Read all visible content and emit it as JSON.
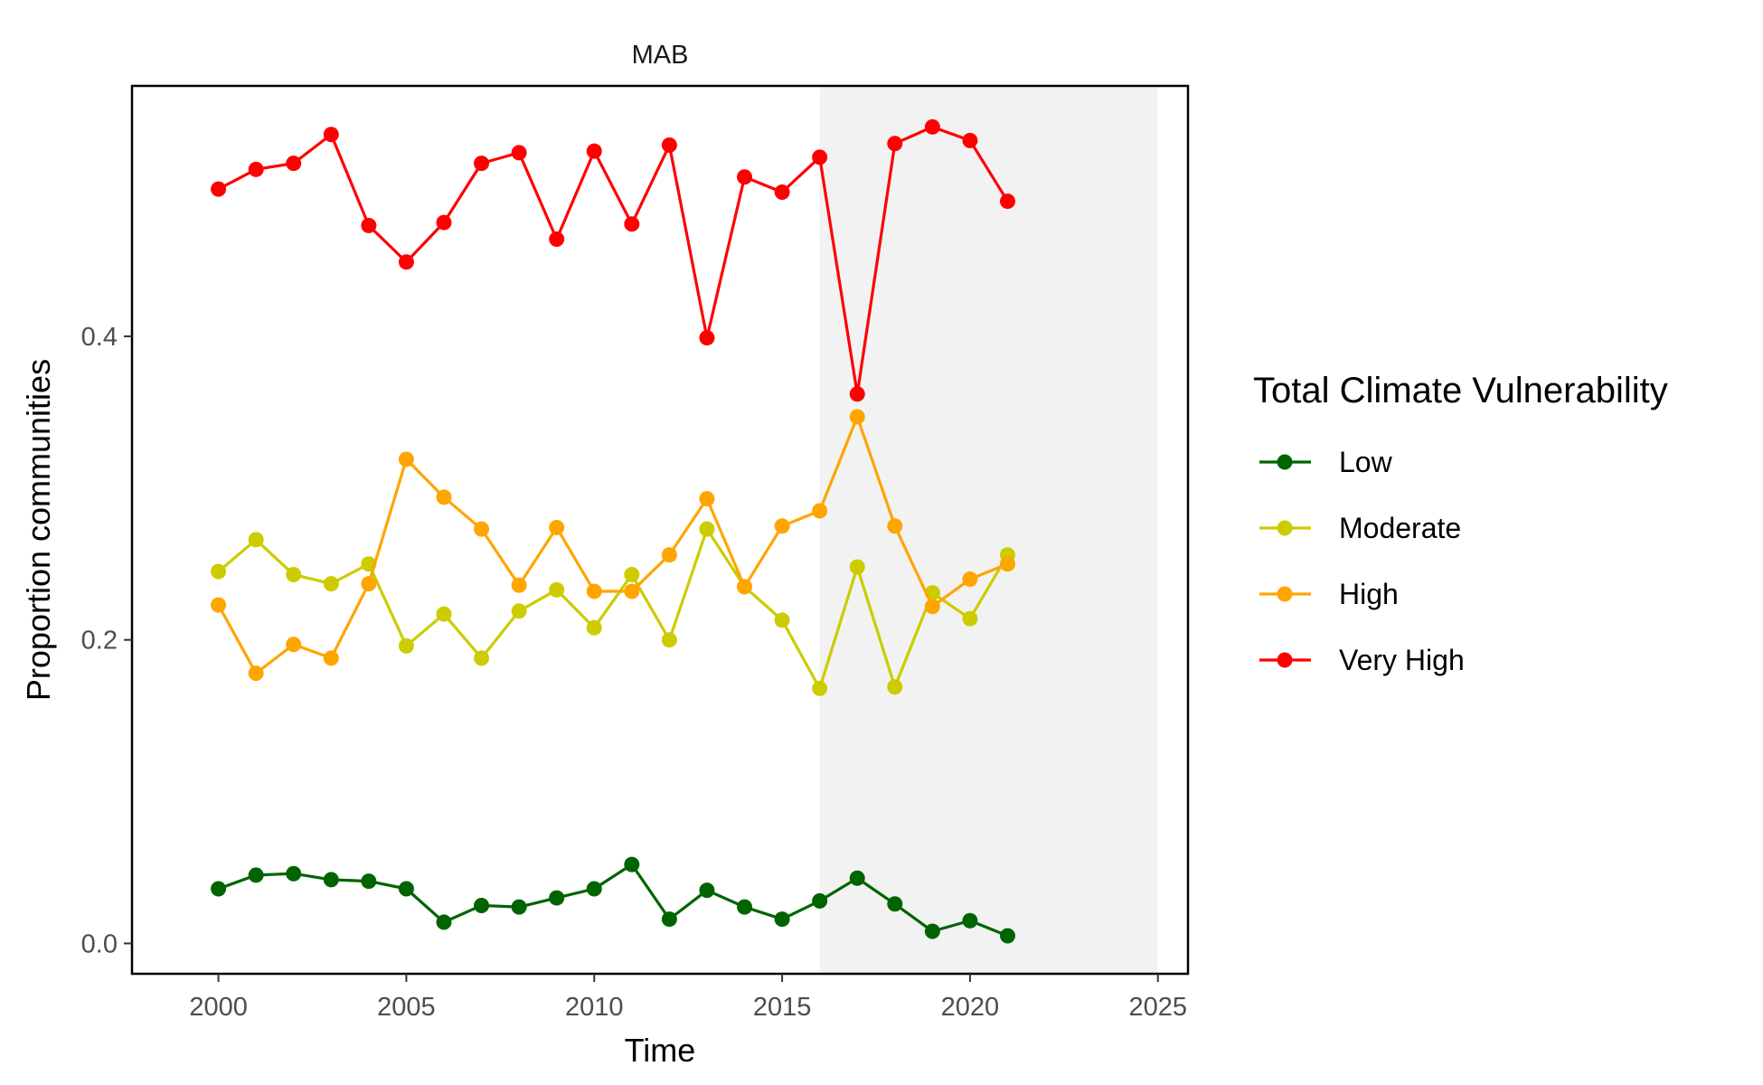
{
  "chart_data": {
    "type": "line",
    "title": "MAB",
    "xlabel": "Time",
    "ylabel": "Proportion communities",
    "xlim": [
      1997.7,
      2025.8
    ],
    "ylim": [
      -0.02,
      0.565
    ],
    "x_ticks": [
      2000,
      2005,
      2010,
      2015,
      2020,
      2025
    ],
    "y_ticks": [
      0.0,
      0.2,
      0.4
    ],
    "x_tick_labels": [
      "2000",
      "2005",
      "2010",
      "2015",
      "2020",
      "2025"
    ],
    "y_tick_labels": [
      "0.0",
      "0.2",
      "0.4"
    ],
    "shaded_region": {
      "x_start": 2016,
      "x_end": 2025,
      "color": "#f2f2f2"
    },
    "legend": {
      "title": "Total Climate Vulnerability",
      "position": "right"
    },
    "x": [
      2000,
      2001,
      2002,
      2003,
      2004,
      2005,
      2006,
      2007,
      2008,
      2009,
      2010,
      2011,
      2012,
      2013,
      2014,
      2015,
      2016,
      2017,
      2018,
      2019,
      2020,
      2021
    ],
    "series": [
      {
        "name": "Low",
        "color": "#006400",
        "values": [
          0.036,
          0.045,
          0.046,
          0.042,
          0.041,
          0.036,
          0.014,
          0.025,
          0.024,
          0.03,
          0.036,
          0.052,
          0.016,
          0.035,
          0.024,
          0.016,
          0.028,
          0.043,
          0.026,
          0.008,
          0.015,
          0.005
        ]
      },
      {
        "name": "Moderate",
        "color": "#cccc00",
        "values": [
          0.245,
          0.266,
          0.243,
          0.237,
          0.25,
          0.196,
          0.217,
          0.188,
          0.219,
          0.233,
          0.208,
          0.243,
          0.2,
          0.273,
          0.235,
          0.213,
          0.168,
          0.248,
          0.169,
          0.231,
          0.214,
          0.256
        ]
      },
      {
        "name": "High",
        "color": "#ffa500",
        "values": [
          0.223,
          0.178,
          0.197,
          0.188,
          0.237,
          0.319,
          0.294,
          0.273,
          0.236,
          0.274,
          0.232,
          0.232,
          0.256,
          0.293,
          0.235,
          0.275,
          0.285,
          0.347,
          0.275,
          0.222,
          0.24,
          0.25
        ]
      },
      {
        "name": "Very High",
        "color": "#ff0000",
        "values": [
          0.497,
          0.51,
          0.514,
          0.533,
          0.473,
          0.449,
          0.475,
          0.514,
          0.521,
          0.464,
          0.522,
          0.474,
          0.526,
          0.399,
          0.505,
          0.495,
          0.518,
          0.362,
          0.527,
          0.538,
          0.529,
          0.489
        ]
      }
    ]
  }
}
